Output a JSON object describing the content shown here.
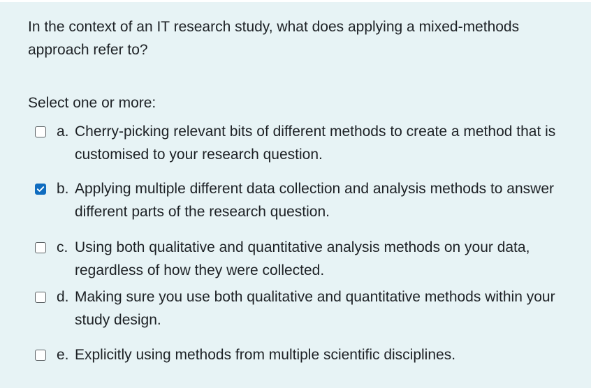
{
  "question": {
    "text": "In the context of an IT research study, what does applying a mixed-methods approach refer to?"
  },
  "prompt": "Select one or more:",
  "options": [
    {
      "letter": "a.",
      "text": "Cherry-picking relevant bits of different methods to create a method that is customised to your research question.",
      "checked": false
    },
    {
      "letter": "b.",
      "text": "Applying multiple different data collection and analysis methods to answer different parts of the research question.",
      "checked": true
    },
    {
      "letter": "c.",
      "text": "Using both qualitative and quantitative analysis methods on your data, regardless of how they were collected.",
      "checked": false
    },
    {
      "letter": "d.",
      "text": "Making sure you use both qualitative and quantitative methods within your study design.",
      "checked": false
    },
    {
      "letter": "e.",
      "text": "Explicitly using methods from multiple scientific disciplines.",
      "checked": false
    }
  ],
  "colors": {
    "panel_background": "#e7f3f5",
    "checkbox_checked": "#0f6cbf",
    "text": "#1d2125"
  }
}
